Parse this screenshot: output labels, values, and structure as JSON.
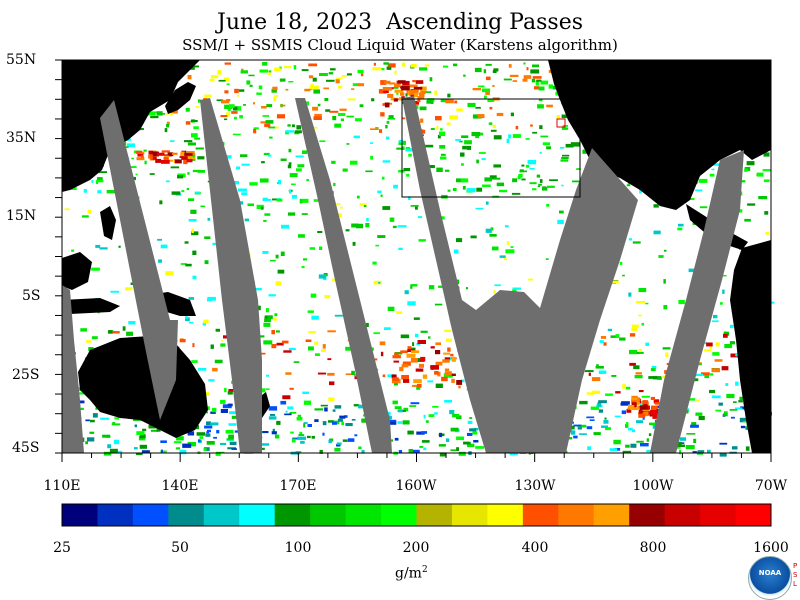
{
  "title": "June 18, 2023  Ascending Passes",
  "subtitle": "SSM/I + SSMIS Cloud Liquid Water (Karstens algorithm)",
  "lat_labels": [
    "55N",
    "35N",
    "15N",
    "5S",
    "25S",
    "45S"
  ],
  "lon_labels": [
    "110E",
    "140E",
    "170E",
    "160W",
    "130W",
    "100W",
    "70W"
  ],
  "colorbar": {
    "colors": [
      "#00007d",
      "#0030c0",
      "#0050ff",
      "#008c8c",
      "#00c8c8",
      "#00ffff",
      "#009600",
      "#00c800",
      "#00e600",
      "#00ff00",
      "#b4b400",
      "#e6e600",
      "#ffff00",
      "#ff5000",
      "#ff7800",
      "#ffa000",
      "#960000",
      "#c80000",
      "#e60000",
      "#ff0000"
    ],
    "tick_labels": [
      "25",
      "50",
      "100",
      "200",
      "400",
      "800",
      "1600"
    ],
    "units_base": "g/m",
    "units_exp": "2"
  },
  "logo": {
    "text": "NOAA",
    "side_text": "PSL"
  }
}
